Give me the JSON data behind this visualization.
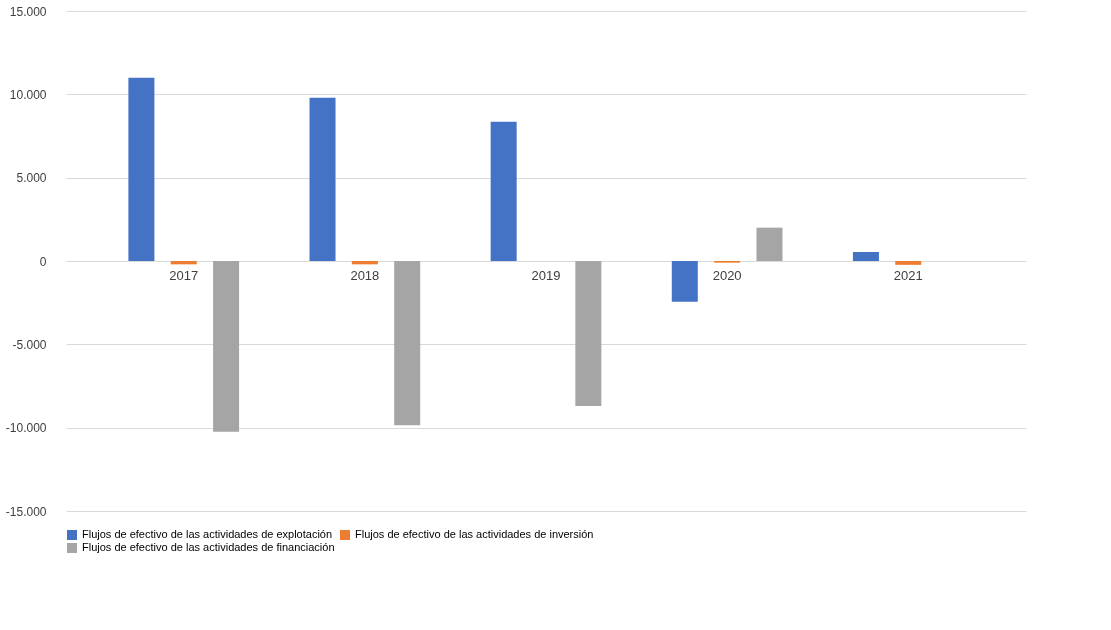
{
  "chart_data": {
    "type": "bar",
    "categories": [
      "2017",
      "2018",
      "2019",
      "2020",
      "2021"
    ],
    "series": [
      {
        "name": "Flujos de efectivo de las actividades de explotación",
        "color": "#4472c4",
        "values": [
          11000,
          9800,
          8350,
          -2450,
          540
        ]
      },
      {
        "name": "Flujos de efectivo de las actividades de inversión",
        "color": "#ed7d31",
        "values": [
          -200,
          -200,
          0,
          -100,
          -230
        ]
      },
      {
        "name": "Flujos de efectivo de las actividades de financiación",
        "color": "#a5a5a5",
        "values": [
          -10250,
          -9850,
          -8700,
          2000,
          0
        ]
      }
    ],
    "ylim": [
      -15000,
      15000
    ],
    "yticks": [
      {
        "value": -15000,
        "label": "-15.000"
      },
      {
        "value": -10000,
        "label": "-10.000"
      },
      {
        "value": -5000,
        "label": "-5.000"
      },
      0,
      {
        "value": 5000,
        "label": "5.000"
      },
      {
        "value": 10000,
        "label": "10.000"
      },
      {
        "value": 15000,
        "label": "15.000"
      }
    ],
    "grid": "y",
    "legend": "bottom"
  }
}
